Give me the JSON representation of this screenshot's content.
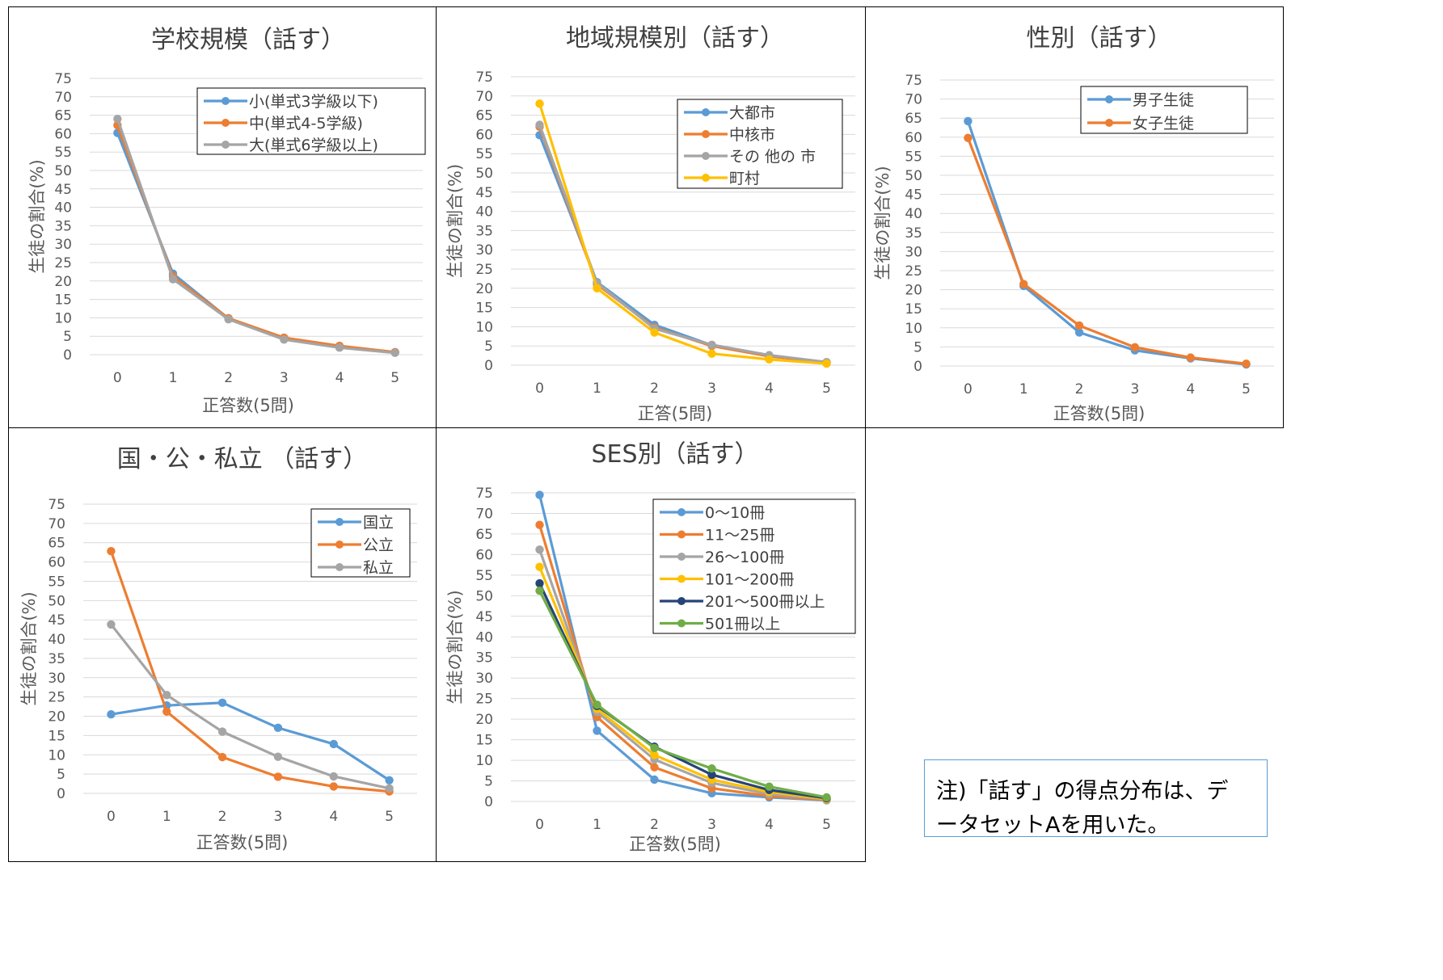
{
  "chart_data": [
    {
      "type": "line",
      "title": "学校規模（話す）",
      "xlabel": "正答数(5問)",
      "ylabel": "生徒の割合(%)",
      "x": [
        0,
        1,
        2,
        3,
        4,
        5
      ],
      "ylim": [
        0,
        75
      ],
      "yticks": [
        0,
        5,
        10,
        15,
        20,
        25,
        30,
        35,
        40,
        45,
        50,
        55,
        60,
        65,
        70,
        75
      ],
      "grid": true,
      "legend_position": "top-right",
      "series": [
        {
          "name": "小(単式3学級以下)",
          "color": "#5b9bd5",
          "values": [
            60.2,
            22.0,
            9.8,
            4.6,
            2.2,
            0.6
          ]
        },
        {
          "name": "中(単式4-5学級)",
          "color": "#ed7d31",
          "values": [
            62.3,
            21.2,
            9.9,
            4.6,
            2.4,
            0.7
          ]
        },
        {
          "name": "大(単式6学級以上)",
          "color": "#a5a5a5",
          "values": [
            64.0,
            20.5,
            9.6,
            4.1,
            1.9,
            0.5
          ]
        }
      ]
    },
    {
      "type": "line",
      "title": "地域規模別（話す）",
      "xlabel": "正答(5問)",
      "ylabel": "生徒の割合(%)",
      "x": [
        0,
        1,
        2,
        3,
        4,
        5
      ],
      "ylim": [
        0,
        75
      ],
      "yticks": [
        0,
        5,
        10,
        15,
        20,
        25,
        30,
        35,
        40,
        45,
        50,
        55,
        60,
        65,
        70,
        75
      ],
      "grid": true,
      "legend_position": "top-right",
      "series": [
        {
          "name": "大都市",
          "color": "#5b9bd5",
          "values": [
            59.8,
            21.6,
            10.5,
            5.2,
            2.4,
            0.7
          ]
        },
        {
          "name": "中核市",
          "color": "#ed7d31",
          "values": [
            62.0,
            21.0,
            9.8,
            5.0,
            2.3,
            0.7
          ]
        },
        {
          "name": "その 他の 市",
          "color": "#a5a5a5",
          "values": [
            62.5,
            21.4,
            9.5,
            5.3,
            2.6,
            0.8
          ]
        },
        {
          "name": "町村",
          "color": "#ffc000",
          "values": [
            68.0,
            20.0,
            8.5,
            3.0,
            1.5,
            0.4
          ]
        }
      ]
    },
    {
      "type": "line",
      "title": "性別（話す）",
      "xlabel": "正答数(5問)",
      "ylabel": "生徒の割合(%)",
      "x": [
        0,
        1,
        2,
        3,
        4,
        5
      ],
      "ylim": [
        0,
        75
      ],
      "yticks": [
        0,
        5,
        10,
        15,
        20,
        25,
        30,
        35,
        40,
        45,
        50,
        55,
        60,
        65,
        70,
        75
      ],
      "grid": true,
      "legend_position": "top-right",
      "series": [
        {
          "name": "男子生徒",
          "color": "#5b9bd5",
          "values": [
            64.2,
            21.0,
            8.8,
            4.1,
            2.0,
            0.4
          ]
        },
        {
          "name": "女子生徒",
          "color": "#ed7d31",
          "values": [
            59.8,
            21.5,
            10.6,
            4.9,
            2.2,
            0.6
          ]
        }
      ]
    },
    {
      "type": "line",
      "title": "国・公・私立 （話す）",
      "xlabel": "正答数(5問)",
      "ylabel": "生徒の割合(%)",
      "x": [
        0,
        1,
        2,
        3,
        4,
        5
      ],
      "ylim": [
        0,
        75
      ],
      "yticks": [
        0,
        5,
        10,
        15,
        20,
        25,
        30,
        35,
        40,
        45,
        50,
        55,
        60,
        65,
        70,
        75
      ],
      "grid": true,
      "legend_position": "top-right",
      "series": [
        {
          "name": "国立",
          "color": "#5b9bd5",
          "values": [
            20.5,
            22.8,
            23.5,
            17.0,
            12.8,
            3.4
          ]
        },
        {
          "name": "公立",
          "color": "#ed7d31",
          "values": [
            62.8,
            21.2,
            9.4,
            4.3,
            1.8,
            0.5
          ]
        },
        {
          "name": "私立",
          "color": "#a5a5a5",
          "values": [
            43.8,
            25.5,
            16.0,
            9.5,
            4.4,
            1.3
          ]
        }
      ]
    },
    {
      "type": "line",
      "title": "SES別（話す）",
      "xlabel": "正答数(5問)",
      "ylabel": "生徒の割合(%)",
      "x": [
        0,
        1,
        2,
        3,
        4,
        5
      ],
      "ylim": [
        0,
        75
      ],
      "yticks": [
        0,
        5,
        10,
        15,
        20,
        25,
        30,
        35,
        40,
        45,
        50,
        55,
        60,
        65,
        70,
        75
      ],
      "grid": true,
      "legend_position": "top-right",
      "series": [
        {
          "name": "0～10冊",
          "color": "#5b9bd5",
          "values": [
            74.5,
            17.2,
            5.3,
            2.0,
            1.0,
            0.3
          ]
        },
        {
          "name": "11～25冊",
          "color": "#ed7d31",
          "values": [
            67.2,
            20.5,
            8.3,
            3.2,
            1.3,
            0.4
          ]
        },
        {
          "name": "26～100冊",
          "color": "#a5a5a5",
          "values": [
            61.2,
            21.8,
            10.2,
            4.5,
            1.8,
            0.5
          ]
        },
        {
          "name": "101～200冊",
          "color": "#ffc000",
          "values": [
            57.0,
            22.5,
            11.3,
            5.3,
            2.3,
            0.6
          ]
        },
        {
          "name": "201～500冊以上",
          "color": "#264478",
          "values": [
            53.0,
            23.2,
            13.3,
            6.5,
            2.8,
            0.8
          ]
        },
        {
          "name": "501冊以上",
          "color": "#70ad47",
          "values": [
            51.2,
            23.5,
            13.0,
            8.0,
            3.6,
            1.0
          ]
        }
      ]
    }
  ],
  "note": {
    "line1": "注)「話す」の得点分布は、デ",
    "line2": "ータセットAを用いた。"
  }
}
